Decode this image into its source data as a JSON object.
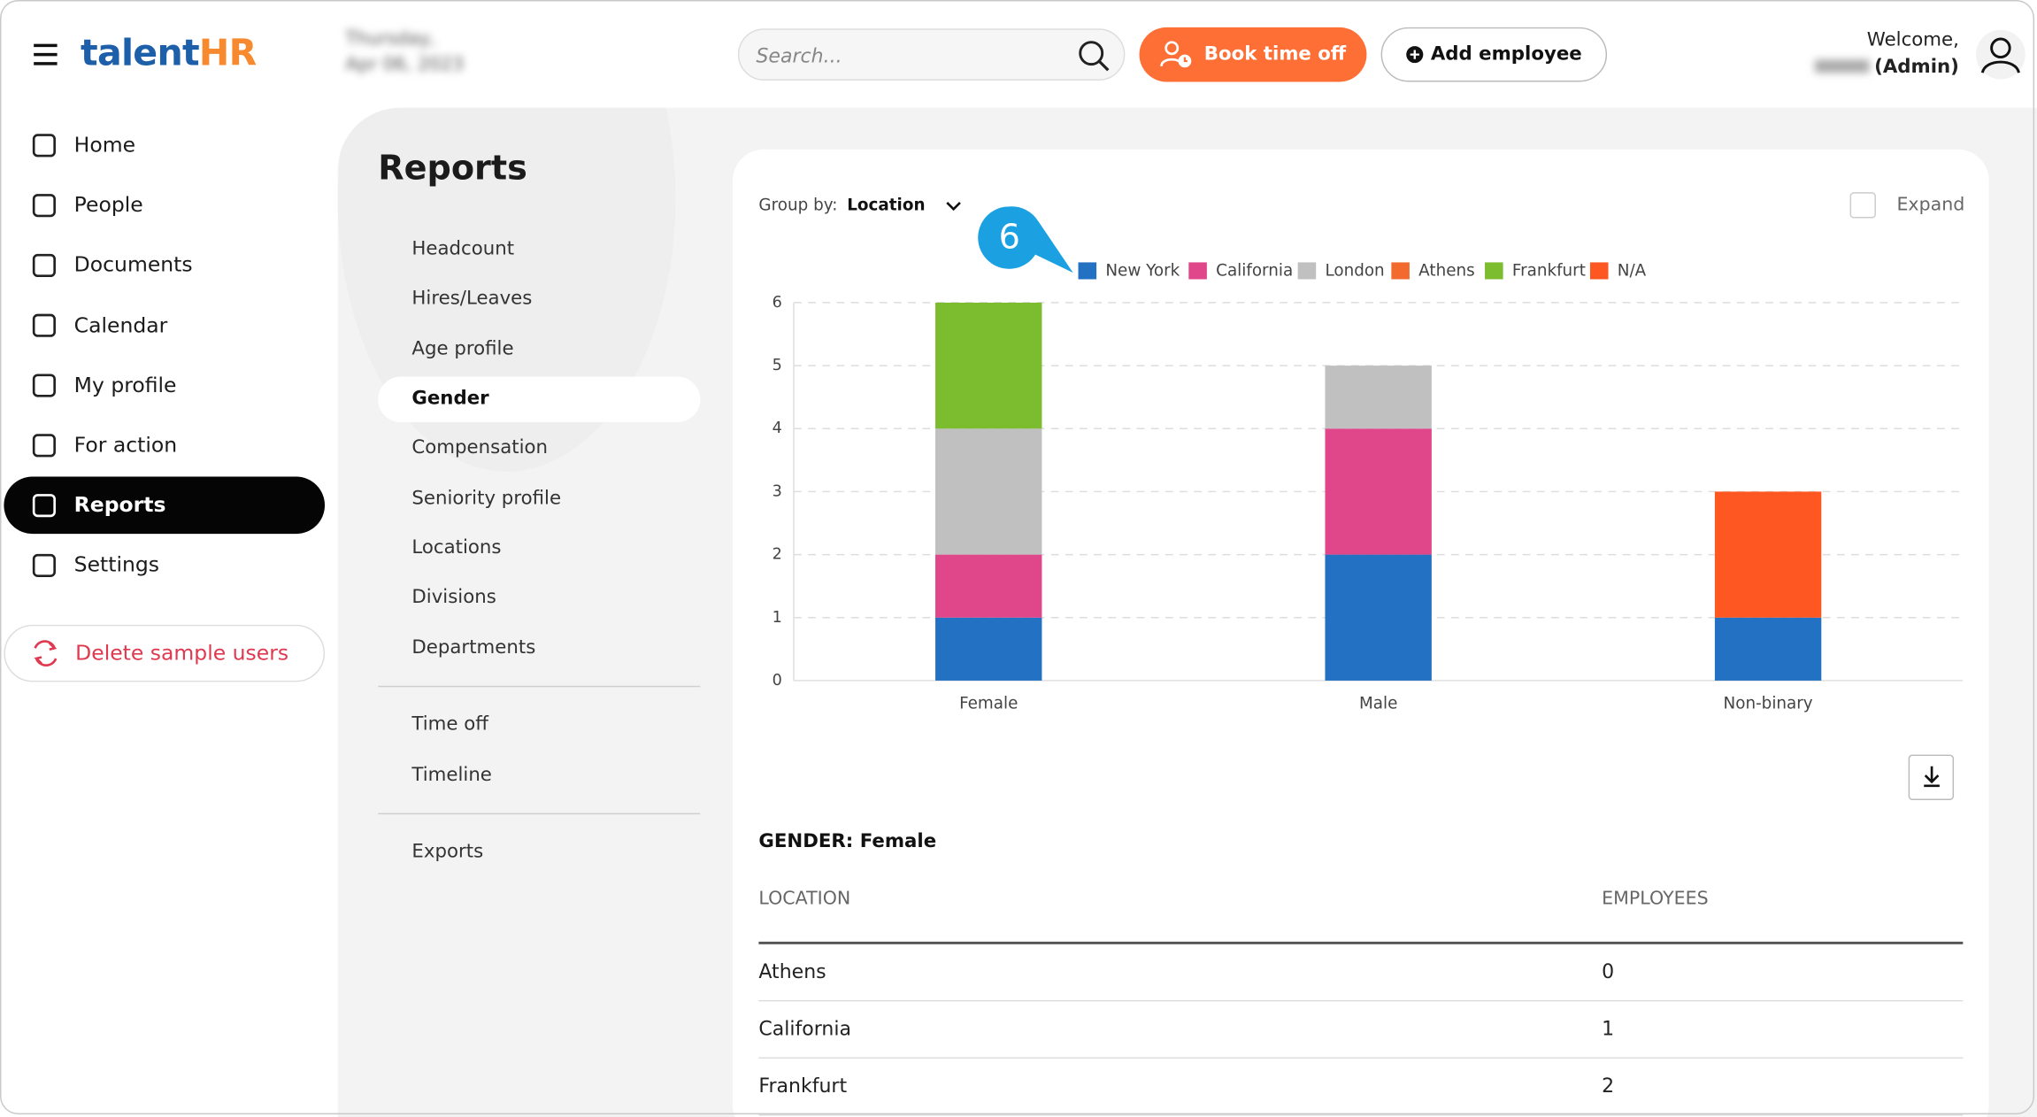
{
  "header": {
    "logo_main": "talent",
    "logo_accent": "HR",
    "date_line1": "Thursday,",
    "date_line2": "Apr 06, 2023",
    "search_placeholder": "Search...",
    "book_button": "Book time off",
    "add_button": "Add employee",
    "welcome": "Welcome,",
    "role": "(Admin)"
  },
  "sidebar": {
    "items": [
      "Home",
      "People",
      "Documents",
      "Calendar",
      "My profile",
      "For action",
      "Reports",
      "Settings"
    ],
    "delete_button": "Delete sample users"
  },
  "reports_menu": {
    "title": "Reports",
    "groups": [
      [
        "Headcount",
        "Hires/Leaves",
        "Age profile",
        "Gender",
        "Compensation",
        "Seniority profile",
        "Locations",
        "Divisions",
        "Departments"
      ],
      [
        "Time off",
        "Timeline"
      ],
      [
        "Exports"
      ]
    ]
  },
  "controls": {
    "group_by_label": "Group by:",
    "group_by_value": "Location",
    "expand": "Expand",
    "callout": "6"
  },
  "chart_data": {
    "type": "stacked_bar",
    "categories": [
      "Female",
      "Male",
      "Non-binary"
    ],
    "series": [
      {
        "name": "New York",
        "color": "#2271c3",
        "values": [
          1,
          2,
          1
        ]
      },
      {
        "name": "California",
        "color": "#e0468a",
        "values": [
          1,
          2,
          0
        ]
      },
      {
        "name": "London",
        "color": "#c0c0c0",
        "values": [
          2,
          1,
          0
        ]
      },
      {
        "name": "Athens",
        "color": "#f26a2e",
        "values": [
          0,
          0,
          0
        ]
      },
      {
        "name": "Frankfurt",
        "color": "#7cbc2f",
        "values": [
          2,
          0,
          0
        ]
      },
      {
        "name": "N/A",
        "color": "#ff5722",
        "values": [
          0,
          0,
          2
        ]
      }
    ],
    "ylim": [
      0,
      6
    ],
    "yticks": [
      0,
      1,
      2,
      3,
      4,
      5,
      6
    ],
    "grid": true,
    "legend": "top"
  },
  "table": {
    "title": "GENDER: Female",
    "columns": [
      "LOCATION",
      "EMPLOYEES"
    ],
    "rows": [
      [
        "Athens",
        "0"
      ],
      [
        "California",
        "1"
      ],
      [
        "Frankfurt",
        "2"
      ]
    ]
  }
}
